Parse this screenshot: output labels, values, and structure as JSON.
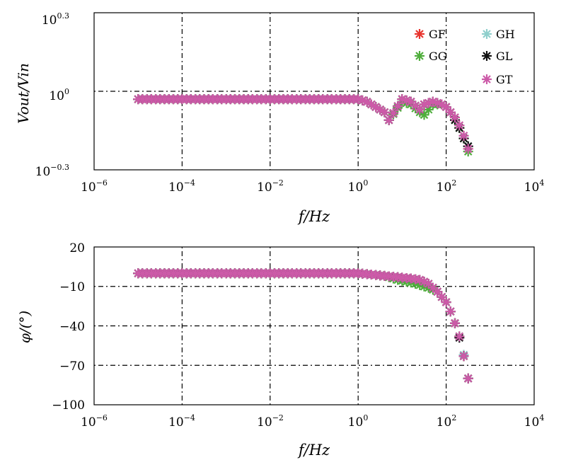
{
  "colors": {
    "GF": "#e8352e",
    "GG": "#4fae3c",
    "GH": "#8fcfcc",
    "GL": "#111111",
    "GT": "#cc5aa8",
    "grid": "#000000",
    "frame": "#000000"
  },
  "chart_data": [
    {
      "type": "scatter",
      "title": "",
      "xlabel": "f/Hz",
      "ylabel": "Vout/Vin",
      "x_scale": "log10",
      "y_scale": "log10",
      "xlim_exp": [
        -6,
        4
      ],
      "ylim_exp": [
        -0.3,
        0.3
      ],
      "x_ticks": [
        {
          "base": "10",
          "exp": "−6"
        },
        {
          "base": "10",
          "exp": "−4"
        },
        {
          "base": "10",
          "exp": "−2"
        },
        {
          "base": "10",
          "exp": "0"
        },
        {
          "base": "10",
          "exp": "2"
        },
        {
          "base": "10",
          "exp": "4"
        }
      ],
      "y_ticks": [
        {
          "base": "10",
          "exp": "0.3"
        },
        {
          "base": "10",
          "exp": "0"
        },
        {
          "base": "10",
          "exp": "−0.3"
        }
      ],
      "legend": {
        "placement": "top-right",
        "columns": 2,
        "order": [
          "GF",
          "GH",
          "GG",
          "GL",
          "GT"
        ]
      },
      "series": [
        {
          "name": "GF",
          "f_exp": [
            -5,
            -4.5,
            -4,
            -3.5,
            -3,
            -2.5,
            -2,
            -1.5,
            -1,
            -0.5,
            0,
            0.2,
            0.4,
            0.6,
            0.7,
            1.0,
            1.2,
            1.4,
            1.5,
            1.7,
            1.9,
            2.0,
            2.1,
            2.2,
            2.3,
            2.4,
            2.5
          ],
          "v_exp": [
            -0.03,
            -0.03,
            -0.03,
            -0.03,
            -0.03,
            -0.03,
            -0.03,
            -0.03,
            -0.03,
            -0.03,
            -0.03,
            -0.04,
            -0.06,
            -0.08,
            -0.11,
            -0.03,
            -0.04,
            -0.07,
            -0.05,
            -0.04,
            -0.05,
            -0.06,
            -0.08,
            -0.1,
            -0.13,
            -0.17,
            -0.22
          ]
        },
        {
          "name": "GG",
          "f_exp": [
            -5,
            -4.5,
            -4,
            -3.5,
            -3,
            -2.5,
            -2,
            -1.5,
            -1,
            -0.5,
            0,
            0.2,
            0.4,
            0.6,
            0.7,
            1.0,
            1.2,
            1.4,
            1.5,
            1.7,
            1.9,
            2.0,
            2.1,
            2.2,
            2.3,
            2.4,
            2.5
          ],
          "v_exp": [
            -0.03,
            -0.03,
            -0.03,
            -0.03,
            -0.03,
            -0.03,
            -0.03,
            -0.03,
            -0.03,
            -0.03,
            -0.03,
            -0.04,
            -0.06,
            -0.08,
            -0.11,
            -0.04,
            -0.05,
            -0.08,
            -0.09,
            -0.05,
            -0.05,
            -0.06,
            -0.08,
            -0.11,
            -0.14,
            -0.18,
            -0.23
          ]
        },
        {
          "name": "GH",
          "f_exp": [
            -5,
            -4.5,
            -4,
            -3.5,
            -3,
            -2.5,
            -2,
            -1.5,
            -1,
            -0.5,
            0,
            0.2,
            0.4,
            0.6,
            0.7,
            1.0,
            1.2,
            1.4,
            1.5,
            1.7,
            1.9,
            2.0,
            2.1,
            2.2,
            2.3,
            2.4,
            2.5
          ],
          "v_exp": [
            -0.03,
            -0.03,
            -0.03,
            -0.03,
            -0.03,
            -0.03,
            -0.03,
            -0.03,
            -0.03,
            -0.03,
            -0.03,
            -0.04,
            -0.06,
            -0.08,
            -0.11,
            -0.03,
            -0.04,
            -0.07,
            -0.05,
            -0.04,
            -0.05,
            -0.06,
            -0.08,
            -0.1,
            -0.13,
            -0.17,
            -0.21
          ]
        },
        {
          "name": "GL",
          "f_exp": [
            -5,
            -4.5,
            -4,
            -3.5,
            -3,
            -2.5,
            -2,
            -1.5,
            -1,
            -0.5,
            0,
            0.2,
            0.4,
            0.6,
            0.7,
            1.0,
            1.2,
            1.4,
            1.5,
            1.7,
            1.9,
            2.0,
            2.1,
            2.2,
            2.3,
            2.4,
            2.5
          ],
          "v_exp": [
            -0.03,
            -0.03,
            -0.03,
            -0.03,
            -0.03,
            -0.03,
            -0.03,
            -0.03,
            -0.03,
            -0.03,
            -0.03,
            -0.04,
            -0.06,
            -0.08,
            -0.11,
            -0.03,
            -0.04,
            -0.07,
            -0.05,
            -0.04,
            -0.05,
            -0.06,
            -0.08,
            -0.11,
            -0.14,
            -0.18,
            -0.21
          ]
        },
        {
          "name": "GT",
          "f_exp": [
            -5,
            -4.5,
            -4,
            -3.5,
            -3,
            -2.5,
            -2,
            -1.5,
            -1,
            -0.5,
            0,
            0.2,
            0.4,
            0.6,
            0.7,
            1.0,
            1.2,
            1.4,
            1.5,
            1.7,
            1.9,
            2.0,
            2.1,
            2.2,
            2.3,
            2.4,
            2.5
          ],
          "v_exp": [
            -0.03,
            -0.03,
            -0.03,
            -0.03,
            -0.03,
            -0.03,
            -0.03,
            -0.03,
            -0.03,
            -0.03,
            -0.03,
            -0.04,
            -0.06,
            -0.08,
            -0.11,
            -0.03,
            -0.04,
            -0.07,
            -0.05,
            -0.04,
            -0.05,
            -0.06,
            -0.08,
            -0.1,
            -0.13,
            -0.17,
            -0.22
          ]
        }
      ]
    },
    {
      "type": "scatter",
      "title": "",
      "xlabel": "f/Hz",
      "ylabel": "φ/(°)",
      "x_scale": "log10",
      "xlim_exp": [
        -6,
        4
      ],
      "ylim": [
        -100,
        20
      ],
      "x_ticks": [
        {
          "base": "10",
          "exp": "−6"
        },
        {
          "base": "10",
          "exp": "−4"
        },
        {
          "base": "10",
          "exp": "−2"
        },
        {
          "base": "10",
          "exp": "0"
        },
        {
          "base": "10",
          "exp": "2"
        },
        {
          "base": "10",
          "exp": "4"
        }
      ],
      "y_ticks": [
        "20",
        "−10",
        "−40",
        "−70",
        "−100"
      ],
      "y_tick_values": [
        20,
        -10,
        -40,
        -70,
        -100
      ],
      "series": [
        {
          "name": "GF",
          "f_exp": [
            -5,
            -4.5,
            -4,
            -3.5,
            -3,
            -2.5,
            -2,
            -1.5,
            -1,
            -0.5,
            0,
            0.3,
            0.6,
            0.9,
            1.2,
            1.4,
            1.6,
            1.8,
            2.0,
            2.1,
            2.2,
            2.3,
            2.4,
            2.5
          ],
          "phi": [
            0,
            0,
            0,
            0,
            0,
            0,
            0,
            0,
            0,
            0,
            0,
            -1,
            -2,
            -3,
            -4,
            -5,
            -8,
            -14,
            -22,
            -29,
            -38,
            -48,
            -63,
            -80
          ]
        },
        {
          "name": "GG",
          "f_exp": [
            -5,
            -4.5,
            -4,
            -3.5,
            -3,
            -2.5,
            -2,
            -1.5,
            -1,
            -0.5,
            0,
            0.3,
            0.6,
            0.9,
            1.2,
            1.4,
            1.6,
            1.8,
            2.0,
            2.1,
            2.2,
            2.3,
            2.4,
            2.5
          ],
          "phi": [
            0,
            0,
            0,
            0,
            0,
            0,
            0,
            0,
            0,
            0,
            0,
            -1,
            -2,
            -5,
            -7,
            -9,
            -11,
            -14,
            -22,
            -29,
            -38,
            -48,
            -63,
            -80
          ]
        },
        {
          "name": "GH",
          "f_exp": [
            -5,
            -4.5,
            -4,
            -3.5,
            -3,
            -2.5,
            -2,
            -1.5,
            -1,
            -0.5,
            0,
            0.3,
            0.6,
            0.9,
            1.2,
            1.4,
            1.6,
            1.8,
            2.0,
            2.1,
            2.2,
            2.3,
            2.4,
            2.5
          ],
          "phi": [
            0,
            0,
            0,
            0,
            0,
            0,
            0,
            0,
            0,
            0,
            0,
            -1,
            -2,
            -3,
            -4,
            -5,
            -8,
            -14,
            -22,
            -29,
            -38,
            -48,
            -62,
            -80
          ]
        },
        {
          "name": "GL",
          "f_exp": [
            -5,
            -4.5,
            -4,
            -3.5,
            -3,
            -2.5,
            -2,
            -1.5,
            -1,
            -0.5,
            0,
            0.3,
            0.6,
            0.9,
            1.2,
            1.4,
            1.6,
            1.8,
            2.0,
            2.1,
            2.2,
            2.3,
            2.4,
            2.5
          ],
          "phi": [
            0,
            0,
            0,
            0,
            0,
            0,
            0,
            0,
            0,
            0,
            0,
            -1,
            -2,
            -3,
            -4,
            -5,
            -8,
            -14,
            -22,
            -29,
            -38,
            -49,
            -63,
            -80
          ]
        },
        {
          "name": "GT",
          "f_exp": [
            -5,
            -4.5,
            -4,
            -3.5,
            -3,
            -2.5,
            -2,
            -1.5,
            -1,
            -0.5,
            0,
            0.3,
            0.6,
            0.9,
            1.2,
            1.4,
            1.6,
            1.8,
            2.0,
            2.1,
            2.2,
            2.3,
            2.4,
            2.5
          ],
          "phi": [
            0,
            0,
            0,
            0,
            0,
            0,
            0,
            0,
            0,
            0,
            0,
            -1,
            -2,
            -3,
            -4,
            -5,
            -8,
            -14,
            -22,
            -29,
            -38,
            -48,
            -63,
            -80
          ]
        }
      ]
    }
  ]
}
